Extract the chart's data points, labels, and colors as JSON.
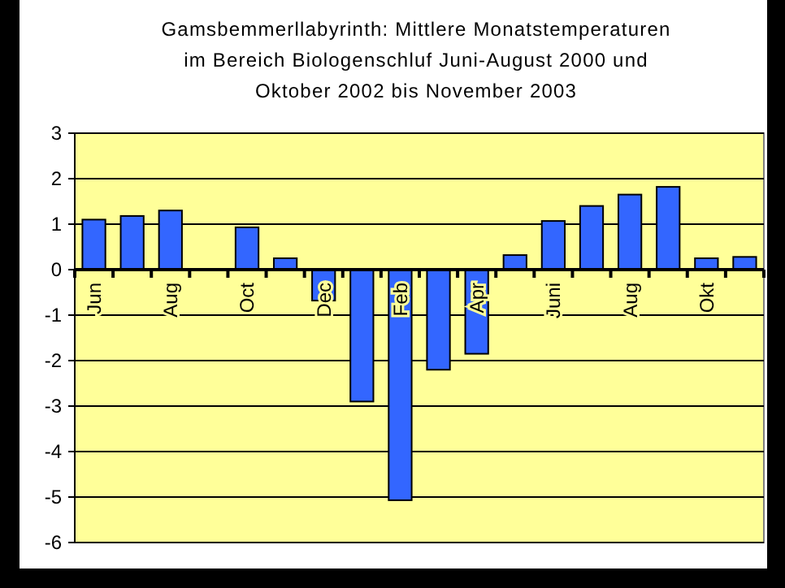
{
  "chart_data": {
    "type": "bar",
    "title": "Gamsbemmerllabyrinth: Mittlere Monatstemperaturen\nim Bereich Biologenschluf Juni-August 2000 und\nOktober 2002 bis November 2003",
    "categories": [
      "Jun",
      null,
      "Aug",
      null,
      "Oct",
      null,
      "Dec",
      null,
      "Feb",
      null,
      "Apr",
      null,
      "Juni",
      null,
      "Aug",
      null,
      "Okt",
      null
    ],
    "values": [
      1.1,
      1.18,
      1.3,
      null,
      0.93,
      0.25,
      -0.68,
      -2.9,
      -5.07,
      -2.2,
      -1.85,
      0.32,
      1.07,
      1.4,
      1.65,
      1.82,
      0.25,
      0.28
    ],
    "color": "#3366ff",
    "ylim": [
      -6,
      3
    ],
    "yticks": [
      -6,
      -5,
      -4,
      -3,
      -2,
      -1,
      0,
      1,
      2,
      3
    ],
    "grid": "y"
  }
}
